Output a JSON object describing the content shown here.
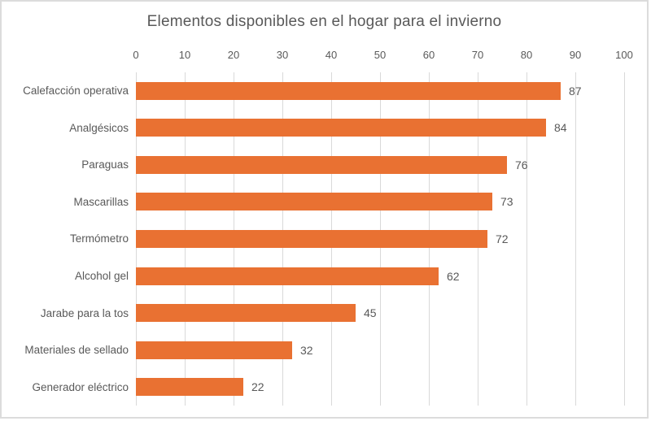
{
  "chart_data": {
    "type": "bar",
    "orientation": "horizontal",
    "title": "Elementos disponibles en el hogar para el invierno",
    "categories": [
      "Calefacción operativa",
      "Analgésicos",
      "Paraguas",
      "Mascarillas",
      "Termómetro",
      "Alcohol gel",
      "Jarabe para la tos",
      "Materiales de sellado",
      "Generador eléctrico"
    ],
    "values": [
      87,
      84,
      76,
      73,
      72,
      62,
      45,
      32,
      22
    ],
    "data_labels": [
      87,
      84,
      76,
      73,
      72,
      62,
      45,
      32,
      22
    ],
    "xlabel": "",
    "ylabel": "",
    "xlim": [
      0,
      100
    ],
    "x_ticks": [
      0,
      10,
      20,
      30,
      40,
      50,
      60,
      70,
      80,
      90,
      100
    ],
    "axis_position": "top",
    "grid": "vertical-major",
    "legend": "none",
    "colors": {
      "bar": "#e97132",
      "gridline": "#d9d9d9",
      "title_text": "#595959",
      "axis_text": "#595959",
      "label_text": "#595959",
      "chart_border": "#dcdcdc",
      "background": "#ffffff"
    }
  }
}
